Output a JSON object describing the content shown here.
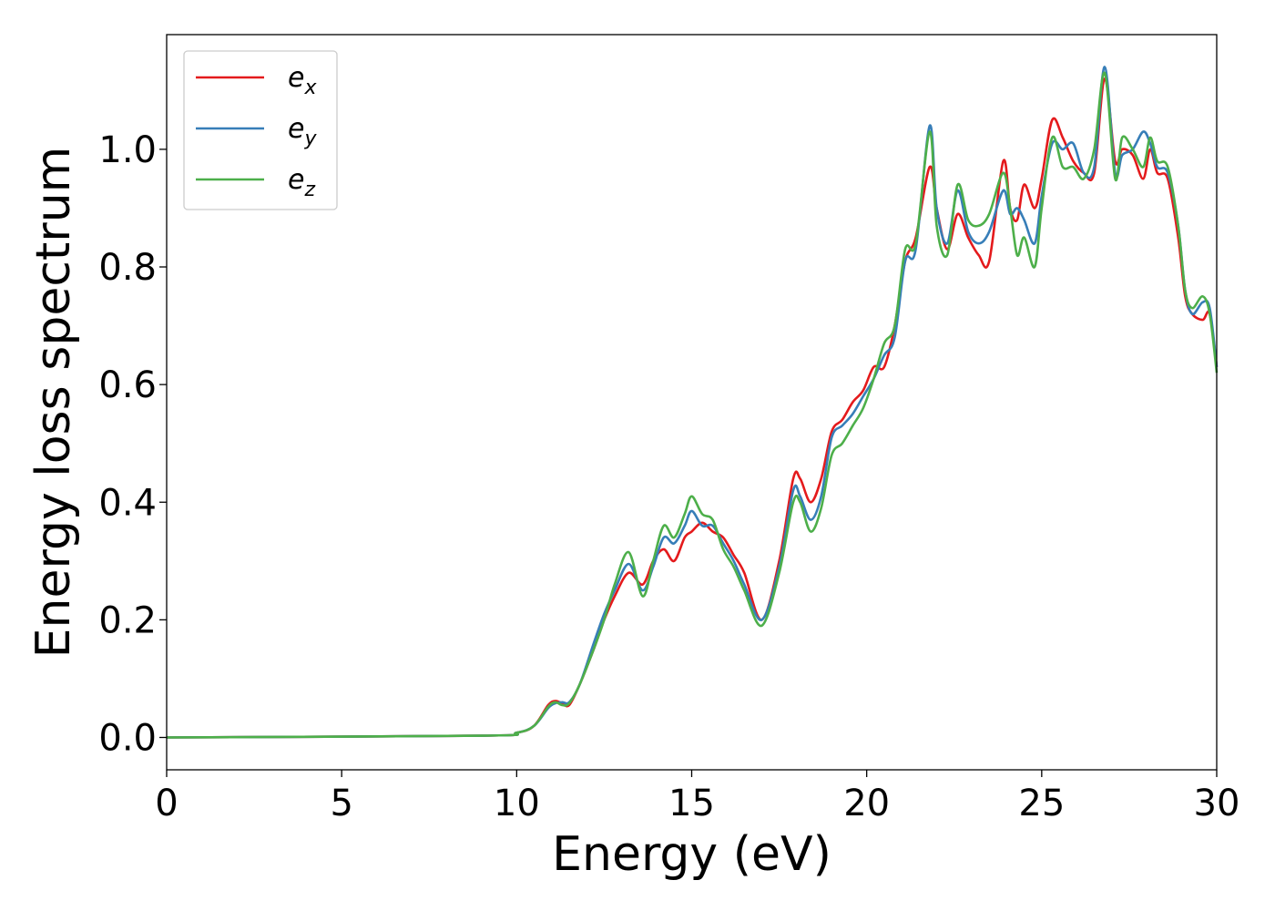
{
  "chart_data": {
    "type": "line",
    "title": "",
    "xlabel": "Energy (eV)",
    "ylabel": "Energy loss spectrum",
    "xlim": [
      0,
      30
    ],
    "ylim": [
      -0.055,
      1.195
    ],
    "xticks": [
      0,
      5,
      10,
      15,
      20,
      25,
      30
    ],
    "xtick_labels": [
      "0",
      "5",
      "10",
      "15",
      "20",
      "25",
      "30"
    ],
    "yticks": [
      0.0,
      0.2,
      0.4,
      0.6,
      0.8,
      1.0
    ],
    "ytick_labels": [
      "0.0",
      "0.2",
      "0.4",
      "0.6",
      "0.8",
      "1.0"
    ],
    "grid": false,
    "legend_position": "upper-left",
    "x": [
      0,
      9,
      10,
      10.5,
      10.9,
      11.1,
      11.3,
      11.5,
      11.8,
      12.2,
      12.5,
      12.8,
      13.2,
      13.6,
      13.9,
      14.2,
      14.5,
      14.8,
      15.0,
      15.3,
      15.6,
      15.9,
      16.2,
      16.5,
      17.0,
      17.5,
      17.9,
      18.1,
      18.4,
      18.7,
      19.0,
      19.3,
      19.6,
      19.9,
      20.2,
      20.5,
      20.8,
      21.1,
      21.4,
      21.8,
      22.0,
      22.3,
      22.6,
      22.9,
      23.2,
      23.5,
      23.9,
      24.1,
      24.3,
      24.5,
      24.8,
      25.0,
      25.3,
      25.6,
      25.9,
      26.2,
      26.5,
      26.8,
      27.1,
      27.3,
      27.6,
      27.9,
      28.1,
      28.3,
      28.6,
      28.9,
      29.1,
      29.3,
      29.6,
      29.8,
      30.0
    ],
    "series": [
      {
        "name": "e_x",
        "color": "#e41a1c",
        "label_main": "e",
        "label_sub": "x",
        "values": [
          0,
          0.003,
          0.008,
          0.02,
          0.055,
          0.062,
          0.058,
          0.055,
          0.09,
          0.15,
          0.2,
          0.24,
          0.28,
          0.26,
          0.3,
          0.32,
          0.3,
          0.34,
          0.35,
          0.365,
          0.35,
          0.34,
          0.31,
          0.28,
          0.2,
          0.3,
          0.44,
          0.44,
          0.4,
          0.44,
          0.52,
          0.54,
          0.57,
          0.59,
          0.63,
          0.63,
          0.7,
          0.81,
          0.85,
          0.97,
          0.9,
          0.83,
          0.89,
          0.85,
          0.82,
          0.81,
          0.98,
          0.9,
          0.88,
          0.94,
          0.9,
          0.95,
          1.05,
          1.02,
          0.98,
          0.96,
          0.96,
          1.12,
          0.98,
          1.0,
          0.99,
          0.95,
          1.0,
          0.96,
          0.95,
          0.85,
          0.75,
          0.72,
          0.71,
          0.72,
          0.63
        ]
      },
      {
        "name": "e_y",
        "color": "#377eb8",
        "label_main": "e",
        "label_sub": "y",
        "values": [
          0,
          0.003,
          0.008,
          0.02,
          0.05,
          0.058,
          0.06,
          0.06,
          0.09,
          0.16,
          0.21,
          0.25,
          0.295,
          0.25,
          0.29,
          0.34,
          0.33,
          0.36,
          0.385,
          0.36,
          0.36,
          0.33,
          0.3,
          0.26,
          0.2,
          0.29,
          0.42,
          0.41,
          0.37,
          0.41,
          0.51,
          0.53,
          0.55,
          0.58,
          0.61,
          0.65,
          0.68,
          0.81,
          0.83,
          1.04,
          0.9,
          0.84,
          0.93,
          0.86,
          0.84,
          0.86,
          0.93,
          0.89,
          0.9,
          0.88,
          0.84,
          0.92,
          1.01,
          1.0,
          1.01,
          0.96,
          0.97,
          1.14,
          0.96,
          0.99,
          1.0,
          1.03,
          1.01,
          0.97,
          0.96,
          0.87,
          0.76,
          0.72,
          0.74,
          0.73,
          0.63
        ]
      },
      {
        "name": "e_z",
        "color": "#4daf4a",
        "label_main": "e",
        "label_sub": "z",
        "values": [
          0,
          0.003,
          0.008,
          0.02,
          0.052,
          0.06,
          0.055,
          0.058,
          0.09,
          0.15,
          0.2,
          0.26,
          0.315,
          0.24,
          0.3,
          0.36,
          0.34,
          0.38,
          0.41,
          0.38,
          0.37,
          0.32,
          0.29,
          0.25,
          0.19,
          0.28,
          0.4,
          0.4,
          0.35,
          0.39,
          0.48,
          0.5,
          0.53,
          0.56,
          0.61,
          0.67,
          0.7,
          0.83,
          0.84,
          1.03,
          0.87,
          0.82,
          0.94,
          0.88,
          0.87,
          0.89,
          0.96,
          0.9,
          0.82,
          0.85,
          0.8,
          0.9,
          1.02,
          0.97,
          0.97,
          0.95,
          1.0,
          1.13,
          0.95,
          1.02,
          1.0,
          0.97,
          1.02,
          0.98,
          0.97,
          0.87,
          0.76,
          0.73,
          0.75,
          0.72,
          0.62
        ]
      }
    ]
  }
}
